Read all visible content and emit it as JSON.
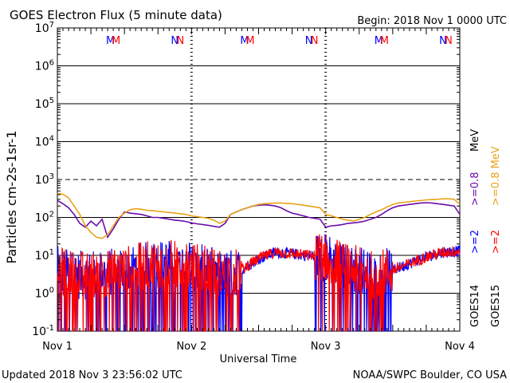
{
  "header": {
    "title": "GOES Electron Flux (5 minute data)",
    "begin": "Begin: 2018 Nov 1 0000 UTC"
  },
  "footer": {
    "updated": "Updated 2018 Nov  3 23:56:02 UTC",
    "source": "NOAA/SWPC Boulder, CO USA"
  },
  "chart_data": {
    "type": "line",
    "ylabel": "Particles cm-2s-1sr-1",
    "xlabel": "Universal Time",
    "yscale": "log",
    "ylim": [
      0.1,
      10000000
    ],
    "xlim": [
      0,
      72
    ],
    "x_ticks": [
      {
        "x": 0,
        "label": "Nov 1"
      },
      {
        "x": 24,
        "label": "Nov 2"
      },
      {
        "x": 48,
        "label": "Nov 3"
      },
      {
        "x": 72,
        "label": "Nov 4"
      }
    ],
    "y_ticks": [
      {
        "exp": -1,
        "label": "10-1"
      },
      {
        "exp": 0,
        "label": "100"
      },
      {
        "exp": 1,
        "label": "101"
      },
      {
        "exp": 2,
        "label": "102"
      },
      {
        "exp": 3,
        "label": "103"
      },
      {
        "exp": 4,
        "label": "104"
      },
      {
        "exp": 5,
        "label": "105"
      },
      {
        "exp": 6,
        "label": "106"
      },
      {
        "exp": 7,
        "label": "107"
      }
    ],
    "threshold_dashed": 1000,
    "grid": true,
    "legend": {
      "right_labels": [
        {
          "text": ">=0.8 MeV",
          "color": "#e8a317"
        },
        {
          "text": ">=0.8",
          "color": "#6a0dad"
        },
        {
          "text": ">=2",
          "color": "#ff0000"
        },
        {
          "text": ">=2",
          "color": "#0000ff"
        },
        {
          "text": "GOES15",
          "color": "#000000"
        },
        {
          "text": "GOES14",
          "color": "#000000"
        }
      ],
      "meV_purple": "MeV"
    },
    "markers": [
      {
        "x": 9.5,
        "text": "M",
        "color": "#0000ff"
      },
      {
        "x": 10.5,
        "text": "M",
        "color": "#ff0000"
      },
      {
        "x": 21.0,
        "text": "N",
        "color": "#0000ff"
      },
      {
        "x": 22.0,
        "text": "N",
        "color": "#ff0000"
      },
      {
        "x": 33.5,
        "text": "M",
        "color": "#0000ff"
      },
      {
        "x": 34.5,
        "text": "M",
        "color": "#ff0000"
      },
      {
        "x": 45.0,
        "text": "N",
        "color": "#0000ff"
      },
      {
        "x": 46.0,
        "text": "N",
        "color": "#ff0000"
      },
      {
        "x": 57.5,
        "text": "M",
        "color": "#0000ff"
      },
      {
        "x": 58.5,
        "text": "M",
        "color": "#ff0000"
      },
      {
        "x": 69.0,
        "text": "N",
        "color": "#0000ff"
      },
      {
        "x": 70.0,
        "text": "N",
        "color": "#ff0000"
      }
    ],
    "day_boundaries": [
      24,
      48
    ],
    "series": [
      {
        "name": "GOES14 >=0.8 MeV",
        "color": "#6a0dad",
        "x": [
          0,
          1,
          2,
          3,
          4,
          5,
          6,
          7,
          8,
          9,
          10,
          11,
          12,
          13,
          14,
          15,
          16,
          17,
          18,
          19,
          20,
          21,
          22,
          23,
          24,
          25,
          26,
          27,
          28,
          29,
          30,
          31,
          32,
          33,
          34,
          35,
          36,
          37,
          38,
          39,
          40,
          41,
          42,
          43,
          44,
          45,
          46,
          47,
          48,
          49,
          50,
          51,
          52,
          53,
          54,
          55,
          56,
          57,
          58,
          59,
          60,
          61,
          62,
          63,
          64,
          65,
          66,
          67,
          68,
          69,
          70,
          71,
          72
        ],
        "y": [
          280,
          230,
          180,
          120,
          70,
          55,
          80,
          60,
          90,
          30,
          50,
          90,
          140,
          130,
          125,
          120,
          110,
          100,
          100,
          95,
          90,
          85,
          82,
          78,
          72,
          68,
          65,
          62,
          58,
          55,
          70,
          120,
          140,
          160,
          180,
          200,
          210,
          215,
          210,
          200,
          180,
          150,
          130,
          120,
          110,
          100,
          95,
          90,
          55,
          60,
          62,
          65,
          70,
          72,
          75,
          80,
          90,
          100,
          120,
          150,
          180,
          200,
          210,
          220,
          230,
          240,
          245,
          240,
          230,
          220,
          210,
          200,
          120
        ]
      },
      {
        "name": "GOES15 >=0.8 MeV",
        "color": "#e8a317",
        "x": [
          0,
          1,
          2,
          3,
          4,
          5,
          6,
          7,
          8,
          9,
          10,
          11,
          12,
          13,
          14,
          15,
          16,
          17,
          18,
          19,
          20,
          21,
          22,
          23,
          24,
          25,
          26,
          27,
          28,
          29,
          30,
          31,
          32,
          33,
          34,
          35,
          36,
          37,
          38,
          39,
          40,
          41,
          42,
          43,
          44,
          45,
          46,
          47,
          48,
          49,
          50,
          51,
          52,
          53,
          54,
          55,
          56,
          57,
          58,
          59,
          60,
          61,
          62,
          63,
          64,
          65,
          66,
          67,
          68,
          69,
          70,
          71,
          72
        ],
        "y": [
          430,
          410,
          330,
          200,
          120,
          60,
          40,
          30,
          28,
          35,
          60,
          100,
          130,
          160,
          170,
          165,
          155,
          150,
          145,
          140,
          135,
          130,
          125,
          120,
          110,
          105,
          100,
          95,
          85,
          70,
          80,
          120,
          140,
          160,
          180,
          200,
          220,
          230,
          235,
          240,
          240,
          235,
          230,
          220,
          210,
          200,
          190,
          180,
          120,
          110,
          100,
          90,
          85,
          80,
          90,
          100,
          120,
          140,
          160,
          190,
          220,
          240,
          250,
          260,
          270,
          280,
          290,
          295,
          300,
          310,
          310,
          300,
          220
        ]
      }
    ],
    "noisy_series": [
      {
        "name": "GOES14 >=2 MeV",
        "color": "#0000ff"
      },
      {
        "name": "GOES15 >=2 MeV",
        "color": "#ff0000"
      }
    ],
    "noisy_envelope_x": [
      0,
      3,
      6,
      9,
      12,
      15,
      18,
      21,
      24,
      27,
      30,
      33,
      36,
      39,
      42,
      45,
      48,
      51,
      54,
      57,
      60,
      63,
      66,
      69,
      72
    ],
    "noisy_envelope_y": [
      4,
      3,
      3,
      3.5,
      4,
      5,
      6,
      6,
      5,
      4,
      3,
      4,
      8,
      12,
      11,
      10,
      9,
      5,
      4,
      3,
      4,
      6,
      9,
      12,
      13
    ]
  }
}
